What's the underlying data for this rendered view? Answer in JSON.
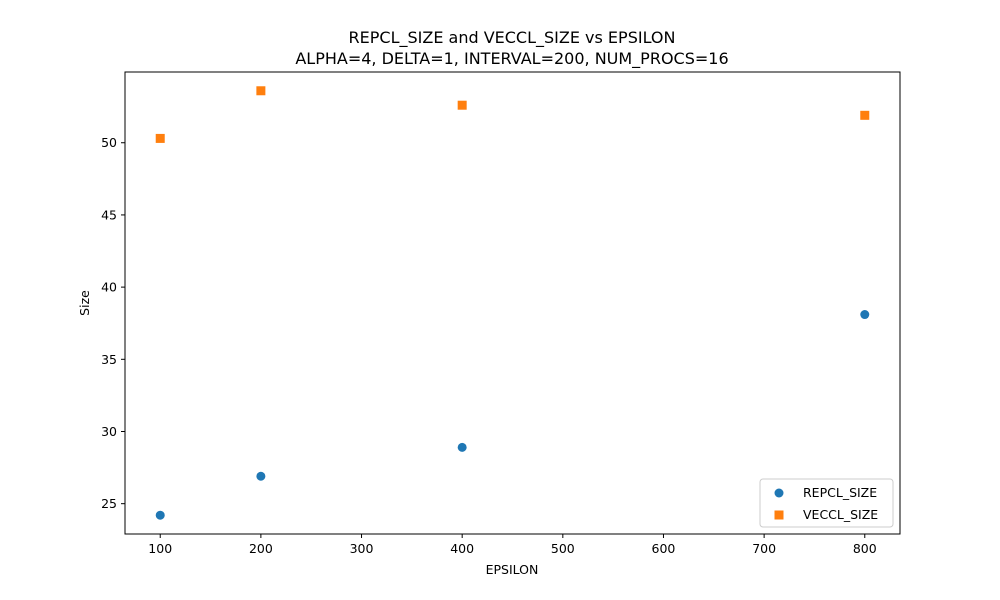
{
  "chart_data": {
    "type": "scatter",
    "title": "REPCL_SIZE and VECCL_SIZE vs EPSILON",
    "subtitle": "ALPHA=4, DELTA=1, INTERVAL=200, NUM_PROCS=16",
    "xlabel": "EPSILON",
    "ylabel": "Size",
    "xlim": [
      65,
      835
    ],
    "ylim": [
      22.9,
      54.9
    ],
    "xticks": [
      100,
      200,
      300,
      400,
      500,
      600,
      700,
      800
    ],
    "yticks": [
      25,
      30,
      35,
      40,
      45,
      50
    ],
    "grid": false,
    "legend_position": "bottom-right",
    "series": [
      {
        "name": "REPCL_SIZE",
        "marker": "circle",
        "color": "#1f77b4",
        "points": [
          {
            "x": 100,
            "y": 24.2
          },
          {
            "x": 200,
            "y": 26.9
          },
          {
            "x": 400,
            "y": 28.9
          },
          {
            "x": 800,
            "y": 38.1
          }
        ]
      },
      {
        "name": "VECCL_SIZE",
        "marker": "square",
        "color": "#ff7f0e",
        "points": [
          {
            "x": 100,
            "y": 50.3
          },
          {
            "x": 200,
            "y": 53.6
          },
          {
            "x": 400,
            "y": 52.6
          },
          {
            "x": 800,
            "y": 51.9
          }
        ]
      }
    ]
  }
}
